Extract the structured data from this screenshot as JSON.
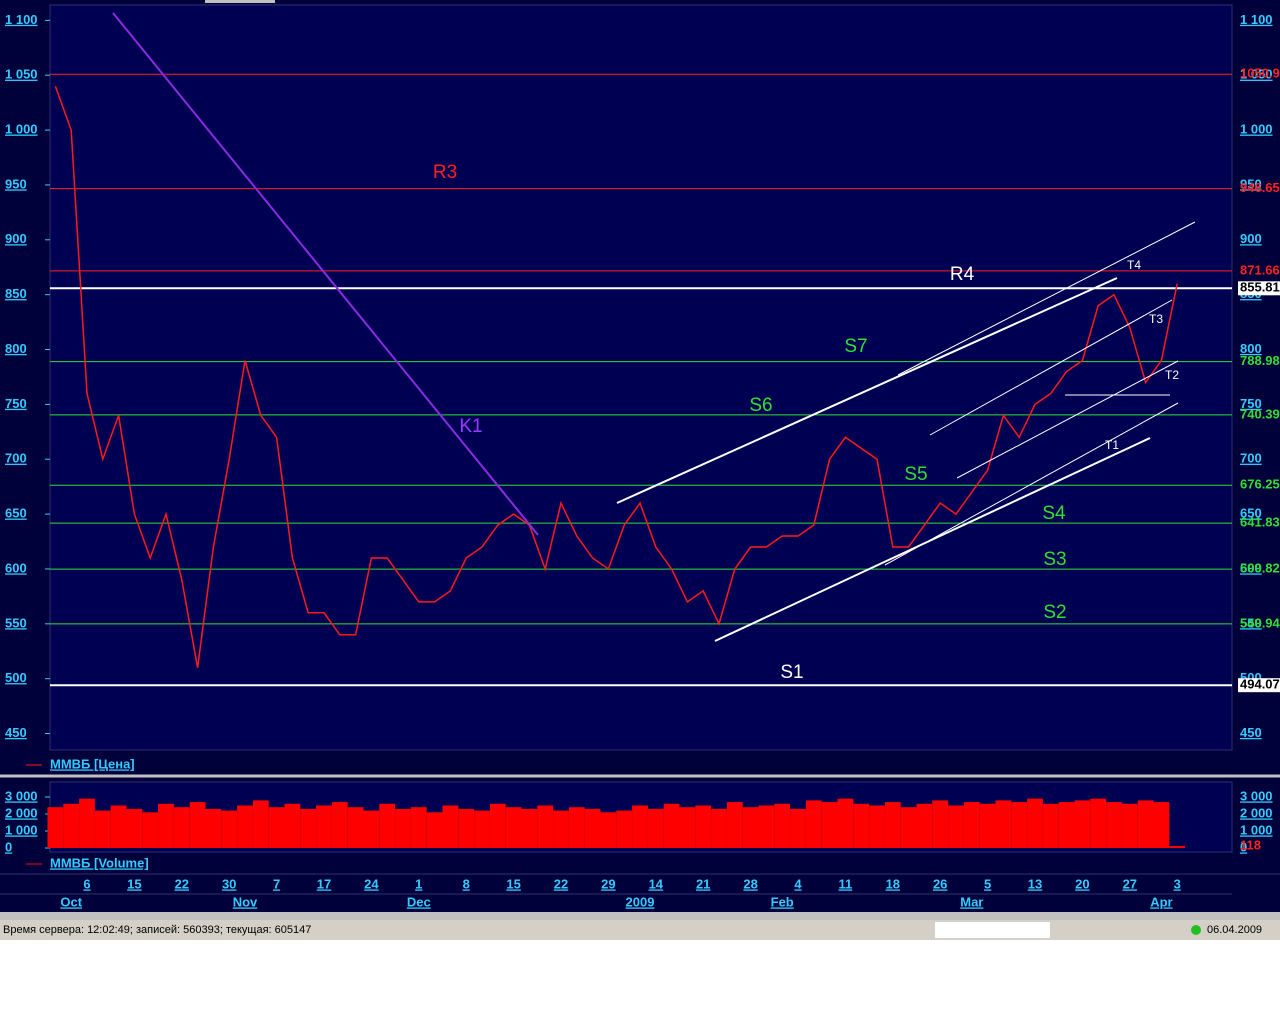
{
  "chart_data": [
    {
      "type": "line",
      "categories": [
        null,
        null,
        "6",
        null,
        null,
        "15",
        null,
        null,
        "22",
        null,
        null,
        "30",
        null,
        null,
        "7",
        null,
        null,
        "17",
        null,
        null,
        "24",
        null,
        null,
        "1",
        null,
        null,
        "8",
        null,
        null,
        "15",
        null,
        null,
        "22",
        null,
        null,
        "29",
        null,
        null,
        "14",
        null,
        null,
        "21",
        null,
        null,
        "28",
        null,
        null,
        "4",
        null,
        null,
        "11",
        null,
        null,
        "18",
        null,
        null,
        "26",
        null,
        null,
        "5",
        null,
        null,
        "13",
        null,
        null,
        "20",
        null,
        null,
        "27",
        null,
        null,
        "3"
      ],
      "x_groups": [
        null,
        "Oct",
        null,
        null,
        null,
        null,
        null,
        null,
        null,
        null,
        null,
        null,
        "Nov",
        null,
        null,
        null,
        null,
        null,
        null,
        null,
        null,
        null,
        null,
        "Dec",
        null,
        null,
        null,
        null,
        null,
        null,
        null,
        null,
        null,
        null,
        null,
        null,
        null,
        "2009",
        null,
        null,
        null,
        null,
        null,
        null,
        null,
        null,
        "Feb",
        null,
        null,
        null,
        null,
        null,
        null,
        null,
        null,
        null,
        null,
        null,
        "Mar",
        null,
        null,
        null,
        null,
        null,
        null,
        null,
        null,
        null,
        null,
        null,
        "Apr",
        null
      ],
      "series": [
        {
          "name": "ММВБ [Цена]",
          "color": "#ff1a1a",
          "values": [
            1040,
            1000,
            760,
            700,
            740,
            650,
            610,
            650,
            590,
            510,
            620,
            700,
            790,
            740,
            720,
            610,
            560,
            560,
            540,
            540,
            610,
            610,
            590,
            570,
            570,
            580,
            610,
            620,
            640,
            650,
            640,
            600,
            660,
            630,
            610,
            600,
            640,
            660,
            620,
            600,
            570,
            580,
            550,
            600,
            620,
            620,
            630,
            630,
            640,
            700,
            720,
            710,
            700,
            620,
            620,
            640,
            660,
            650,
            670,
            690,
            740,
            720,
            750,
            760,
            780,
            790,
            840,
            850,
            820,
            770,
            790,
            860
          ]
        }
      ],
      "ylim": [
        435,
        1114
      ],
      "yticks": [
        {
          "value": 1100,
          "label": "1 100"
        },
        {
          "value": 1050,
          "label": "1 050"
        },
        {
          "value": 1000,
          "label": "1 000"
        },
        950,
        900,
        850,
        800,
        750,
        700,
        650,
        600,
        550,
        500,
        450
      ],
      "levels": [
        {
          "value": 1050.9,
          "color": "#ff2020"
        },
        {
          "value": 946.65,
          "color": "#ff2020"
        },
        {
          "value": 871.66,
          "color": "#ff2020"
        },
        {
          "value": 855.81,
          "color": "#ffffff"
        },
        {
          "value": 788.98,
          "color": "#30e030"
        },
        {
          "value": 740.39,
          "color": "#30e030"
        },
        {
          "value": 676.25,
          "color": "#30e030"
        },
        {
          "value": 641.83,
          "color": "#30e030"
        },
        {
          "value": 599.82,
          "color": "#30e030"
        },
        {
          "value": 549.94,
          "color": "#30e030"
        },
        {
          "value": 494.07,
          "color": "#ffffff"
        }
      ],
      "annotations": [
        {
          "text": "R3",
          "color": "#ff2020"
        },
        {
          "text": "R4",
          "color": "#ffffff"
        },
        {
          "text": "S7",
          "color": "#30e030"
        },
        {
          "text": "S6",
          "color": "#30e030"
        },
        {
          "text": "S5",
          "color": "#30e030"
        },
        {
          "text": "S4",
          "color": "#30e030"
        },
        {
          "text": "S3",
          "color": "#30e030"
        },
        {
          "text": "S2",
          "color": "#30e030"
        },
        {
          "text": "S1",
          "color": "#ffffff"
        },
        {
          "text": "K1",
          "color": "#9a3cff"
        },
        {
          "text": "T1",
          "color": "#ffffff"
        },
        {
          "text": "T2",
          "color": "#ffffff"
        },
        {
          "text": "T3",
          "color": "#ffffff"
        },
        {
          "text": "T4",
          "color": "#ffffff"
        }
      ]
    },
    {
      "type": "bar",
      "series": [
        {
          "name": "ММВБ [Volume]",
          "color": "#ff0000",
          "values": [
            2400,
            2600,
            2900,
            2200,
            2500,
            2300,
            2100,
            2600,
            2400,
            2700,
            2300,
            2200,
            2500,
            2800,
            2400,
            2600,
            2300,
            2500,
            2700,
            2400,
            2200,
            2600,
            2300,
            2400,
            2100,
            2500,
            2300,
            2200,
            2600,
            2400,
            2300,
            2500,
            2200,
            2400,
            2300,
            2100,
            2200,
            2500,
            2300,
            2600,
            2400,
            2500,
            2300,
            2700,
            2400,
            2500,
            2600,
            2300,
            2800,
            2700,
            2900,
            2600,
            2500,
            2700,
            2400,
            2600,
            2800,
            2500,
            2700,
            2600,
            2800,
            2700,
            2900,
            2600,
            2700,
            2800,
            2900,
            2700,
            2600,
            2800,
            2700,
            118
          ]
        }
      ],
      "ylim": [
        0,
        4000
      ],
      "yticks": [
        {
          "value": 3000,
          "label": "3 000"
        },
        {
          "value": 2000,
          "label": "2 000"
        },
        {
          "value": 1000,
          "label": "1 000"
        },
        0
      ]
    }
  ],
  "status_bar": {
    "server_info": "Время сервера: 12:02:49; записей: 560393; текущая: 605147",
    "date": "06.04.2009"
  }
}
